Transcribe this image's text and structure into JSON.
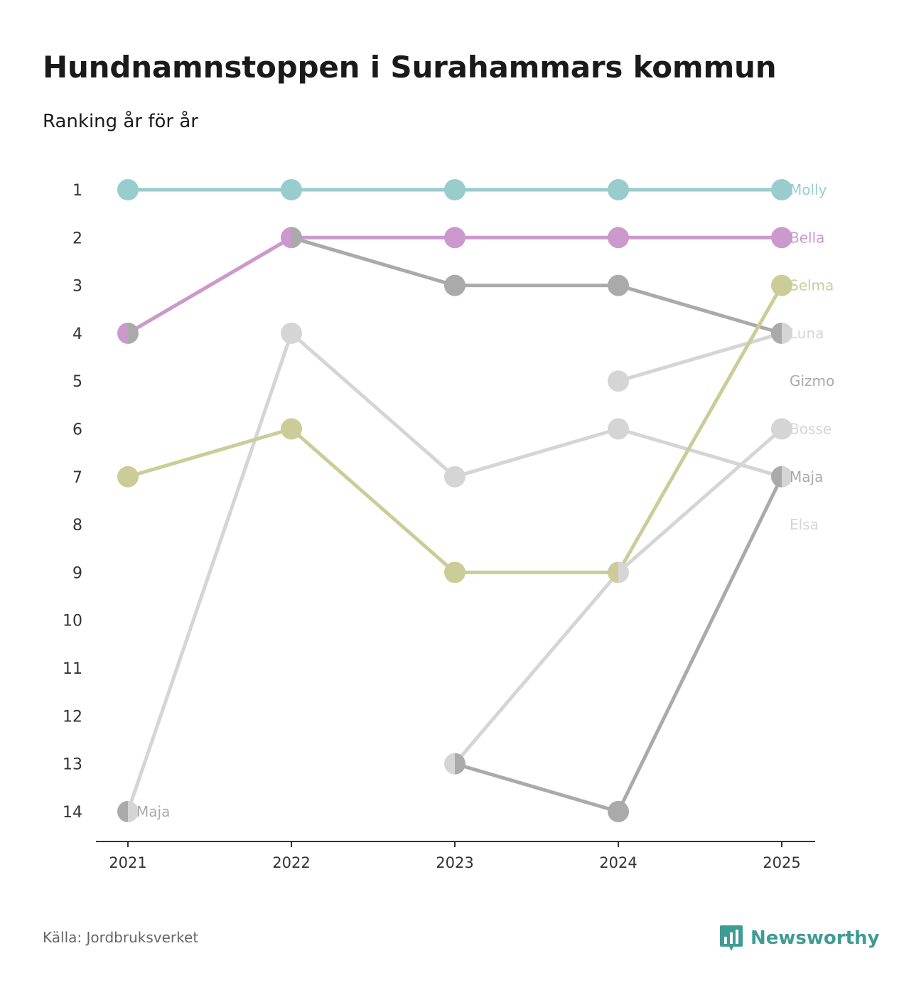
{
  "title": "Hundnamnstoppen i Surahammars kommun",
  "subtitle": "Ranking år för år",
  "source": "Källa: Jordbruksverket",
  "brand": {
    "name": "Newsworthy",
    "color": "#3f9c93"
  },
  "chart_data": {
    "type": "line",
    "title": "Hundnamnstoppen i Surahammars kommun",
    "subtitle": "Ranking år för år",
    "xlabel": "",
    "ylabel": "",
    "x": [
      "2021",
      "2022",
      "2023",
      "2024",
      "2025"
    ],
    "y_ticks": [
      "1",
      "2",
      "3",
      "4",
      "5",
      "6",
      "7",
      "8",
      "9",
      "10",
      "11",
      "12",
      "13",
      "14"
    ],
    "ylim": [
      1,
      14
    ],
    "y_inverted": true,
    "series": [
      {
        "name": "Molly",
        "color": "#99cccc",
        "values": [
          1,
          1,
          1,
          1,
          1
        ]
      },
      {
        "name": "Bella",
        "color": "#cc99cc",
        "values": [
          4,
          2,
          2,
          2,
          2
        ]
      },
      {
        "name": "Selma",
        "color": "#cccc99",
        "values": [
          7,
          6,
          9,
          9,
          3
        ]
      },
      {
        "name": "Gizmo",
        "color": "#aaaaaa",
        "values": [
          4,
          2,
          3,
          3,
          4
        ]
      },
      {
        "name": "Luna",
        "color": "#d5d5d5",
        "values": [
          null,
          null,
          null,
          5,
          4
        ]
      },
      {
        "name": "Bosse",
        "color": "#d5d5d5",
        "values": [
          null,
          null,
          13,
          9,
          6
        ]
      },
      {
        "name": "Maja",
        "color": "#aaaaaa",
        "values": [
          14,
          null,
          13,
          14,
          7
        ]
      },
      {
        "name": "Elsa",
        "color": "#d5d5d5",
        "values": [
          14,
          4,
          7,
          6,
          7
        ]
      }
    ],
    "end_labels": [
      "Molly",
      "Bella",
      "Selma",
      "Luna",
      "Gizmo",
      "Bosse",
      "Maja",
      "Elsa"
    ],
    "extra_labels": [
      {
        "text": "Maja",
        "year": "2021",
        "rank": 14
      }
    ]
  }
}
